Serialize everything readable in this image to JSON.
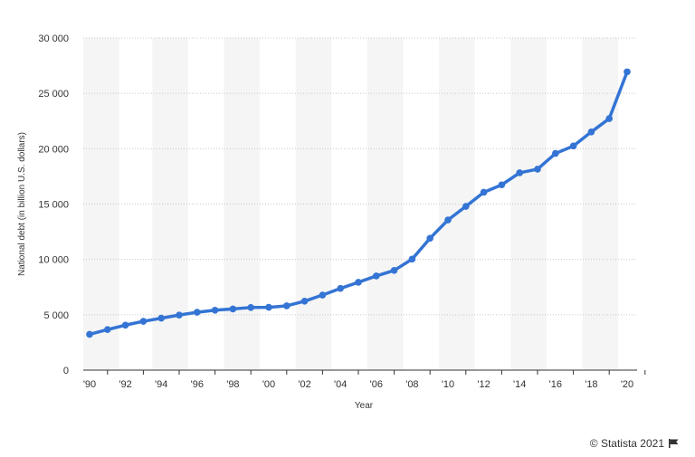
{
  "chart_data": {
    "type": "line",
    "x": [
      1990,
      1991,
      1992,
      1993,
      1994,
      1995,
      1996,
      1997,
      1998,
      1999,
      2000,
      2001,
      2002,
      2003,
      2004,
      2005,
      2006,
      2007,
      2008,
      2009,
      2010,
      2011,
      2012,
      2013,
      2014,
      2015,
      2016,
      2017,
      2018,
      2019,
      2020
    ],
    "values": [
      3233,
      3665,
      4065,
      4411,
      4693,
      4974,
      5225,
      5413,
      5526,
      5656,
      5674,
      5807,
      6228,
      6783,
      7379,
      7933,
      8507,
      9008,
      10025,
      11910,
      13562,
      14790,
      16066,
      16738,
      17824,
      18151,
      19573,
      20245,
      21516,
      22719,
      26945
    ],
    "xticks": [
      1990,
      1992,
      1994,
      1996,
      1998,
      2000,
      2002,
      2004,
      2006,
      2008,
      2010,
      2012,
      2014,
      2016,
      2018,
      2020
    ],
    "xtick_labels": [
      "'90",
      "'92",
      "'94",
      "'96",
      "'98",
      "'00",
      "'02",
      "'04",
      "'06",
      "'08",
      "'10",
      "'12",
      "'14",
      "'16",
      "'18",
      "'20"
    ],
    "yticks": [
      0,
      5000,
      10000,
      15000,
      20000,
      25000,
      30000
    ],
    "ytick_labels": [
      "0",
      "5 000",
      "10 000",
      "15 000",
      "20 000",
      "25 000",
      "30 000"
    ],
    "xlabel": "Year",
    "ylabel": "National debt (in billion U.S. dollars)",
    "ylim": [
      0,
      30000
    ],
    "xlim": [
      1990,
      2020
    ],
    "grid": true,
    "line_color": "#3474d4",
    "band_color": "#f5f5f5"
  },
  "credit": "© Statista 2021",
  "credit_icon": "flag-icon"
}
